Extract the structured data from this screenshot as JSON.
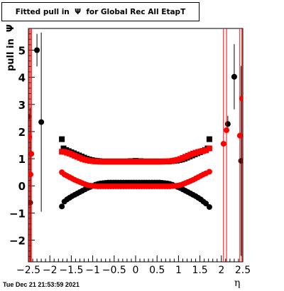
{
  "header": {
    "title": "Fitted pull in  Ψ  for Global Rec All EtapT",
    "footer_timestamp": "Tue Dec 21 21:53:59 2021"
  },
  "chart_data": {
    "type": "scatter",
    "title": "Fitted pull in  Ψ  for Global Rec All EtapT",
    "xlabel": "η",
    "ylabel": "pull in  Ψ",
    "xlim": [
      -2.5,
      2.5
    ],
    "ylim": [
      -2.8,
      5.8
    ],
    "x_ticks": [
      "−2.5",
      "−2",
      "−1.5",
      "−1",
      "−0.5",
      "0",
      "0.5",
      "1",
      "1.5",
      "2",
      "2.5"
    ],
    "x_tick_values": [
      -2.5,
      -2,
      -1.5,
      -1,
      -0.5,
      0,
      0.5,
      1,
      1.5,
      2,
      2.5
    ],
    "y_ticks": [
      "−2",
      "−1",
      "0",
      "1",
      "2",
      "3",
      "4",
      "5"
    ],
    "y_tick_values": [
      -2,
      -1,
      0,
      1,
      2,
      3,
      4,
      5
    ],
    "grid": false,
    "colors": {
      "black": "#000000",
      "red": "#ff0000"
    },
    "series": [
      {
        "marker": "square",
        "color": "#000000",
        "x": [
          -1.72,
          -1.68,
          -1.62,
          -1.56,
          -1.5,
          -1.44,
          -1.38,
          -1.32,
          -1.26,
          -1.2,
          -1.14,
          -1.08,
          -1.02,
          -0.96,
          -0.9,
          -0.84,
          -0.78,
          -0.72,
          -0.66,
          -0.6,
          -0.54,
          -0.48,
          -0.42,
          -0.36,
          -0.3,
          -0.24,
          -0.18,
          -0.12,
          -0.06,
          0,
          0.06,
          0.12,
          0.18,
          0.24,
          0.3,
          0.36,
          0.42,
          0.48,
          0.54,
          0.6,
          0.66,
          0.72,
          0.78,
          0.84,
          0.9,
          0.96,
          1.02,
          1.08,
          1.14,
          1.2,
          1.26,
          1.32,
          1.38,
          1.44,
          1.5,
          1.56,
          1.62,
          1.68,
          1.72
        ],
        "values": [
          1.72,
          1.38,
          1.32,
          1.28,
          1.24,
          1.2,
          1.16,
          1.12,
          1.08,
          1.04,
          1.0,
          0.97,
          0.95,
          0.93,
          0.92,
          0.91,
          0.9,
          0.9,
          0.9,
          0.9,
          0.9,
          0.9,
          0.9,
          0.9,
          0.9,
          0.9,
          0.9,
          0.91,
          0.91,
          0.92,
          0.91,
          0.91,
          0.9,
          0.9,
          0.9,
          0.9,
          0.9,
          0.9,
          0.9,
          0.9,
          0.9,
          0.9,
          0.9,
          0.91,
          0.92,
          0.93,
          0.95,
          0.97,
          1.0,
          1.04,
          1.08,
          1.12,
          1.16,
          1.2,
          1.24,
          1.28,
          1.32,
          1.38,
          1.72
        ]
      },
      {
        "marker": "square",
        "color": "#ff0000",
        "x": [
          -1.72,
          -1.66,
          -1.6,
          -1.54,
          -1.48,
          -1.42,
          -1.36,
          -1.3,
          -1.24,
          -1.18,
          -1.12,
          -1.06,
          -1.0,
          -0.94,
          -0.88,
          -0.82,
          -0.76,
          -0.7,
          -0.64,
          -0.58,
          -0.52,
          -0.46,
          -0.4,
          -0.34,
          -0.28,
          -0.22,
          -0.16,
          -0.1,
          -0.04,
          0.02,
          0.08,
          0.14,
          0.2,
          0.26,
          0.32,
          0.38,
          0.44,
          0.5,
          0.56,
          0.62,
          0.68,
          0.74,
          0.8,
          0.86,
          0.92,
          0.98,
          1.04,
          1.1,
          1.16,
          1.22,
          1.28,
          1.34,
          1.4,
          1.46,
          1.52,
          1.58,
          1.64,
          1.72
        ],
        "values": [
          1.26,
          1.25,
          1.22,
          1.19,
          1.15,
          1.11,
          1.07,
          1.03,
          0.99,
          0.96,
          0.94,
          0.92,
          0.91,
          0.9,
          0.9,
          0.89,
          0.89,
          0.89,
          0.89,
          0.89,
          0.89,
          0.89,
          0.89,
          0.89,
          0.89,
          0.89,
          0.89,
          0.89,
          0.89,
          0.89,
          0.89,
          0.89,
          0.89,
          0.89,
          0.89,
          0.89,
          0.89,
          0.89,
          0.89,
          0.89,
          0.9,
          0.9,
          0.91,
          0.92,
          0.94,
          0.96,
          0.99,
          1.03,
          1.07,
          1.11,
          1.15,
          1.19,
          1.22,
          1.25,
          1.27,
          1.29,
          1.31,
          1.38
        ]
      },
      {
        "marker": "circle",
        "color": "#000000",
        "x": [
          -1.72,
          -1.66,
          -1.6,
          -1.54,
          -1.48,
          -1.42,
          -1.36,
          -1.3,
          -1.24,
          -1.18,
          -1.12,
          -1.06,
          -1.0,
          -0.94,
          -0.88,
          -0.82,
          -0.76,
          -0.7,
          -0.64,
          -0.58,
          -0.52,
          -0.46,
          -0.4,
          -0.34,
          -0.28,
          -0.22,
          -0.16,
          -0.1,
          -0.04,
          0.02,
          0.08,
          0.14,
          0.2,
          0.26,
          0.32,
          0.38,
          0.44,
          0.5,
          0.56,
          0.62,
          0.68,
          0.74,
          0.8,
          0.86,
          0.92,
          0.98,
          1.04,
          1.1,
          1.16,
          1.22,
          1.28,
          1.34,
          1.4,
          1.46,
          1.52,
          1.58,
          1.64,
          1.72,
          -2.5,
          -2.46,
          -2.3,
          -2.2,
          2.3,
          2.46,
          2.15
        ],
        "values": [
          -0.76,
          -0.58,
          -0.5,
          -0.44,
          -0.38,
          -0.33,
          -0.28,
          -0.23,
          -0.18,
          -0.13,
          -0.08,
          -0.04,
          0.0,
          0.04,
          0.07,
          0.09,
          0.1,
          0.11,
          0.12,
          0.12,
          0.12,
          0.12,
          0.12,
          0.12,
          0.12,
          0.12,
          0.12,
          0.12,
          0.12,
          0.12,
          0.12,
          0.12,
          0.12,
          0.12,
          0.12,
          0.12,
          0.12,
          0.12,
          0.12,
          0.11,
          0.1,
          0.09,
          0.07,
          0.04,
          0.0,
          -0.04,
          -0.08,
          -0.13,
          -0.18,
          -0.23,
          -0.28,
          -0.33,
          -0.38,
          -0.44,
          -0.5,
          -0.58,
          -0.65,
          -0.78,
          2.55,
          -0.62,
          5.0,
          2.35,
          4.02,
          0.92,
          2.28
        ],
        "yerr": [
          0.05,
          0.05,
          0.05,
          0.05,
          0.05,
          0.05,
          0.05,
          0.05,
          0.05,
          0.05,
          0.05,
          0.05,
          0.05,
          0.05,
          0.05,
          0.05,
          0.05,
          0.05,
          0.05,
          0.05,
          0.05,
          0.05,
          0.05,
          0.05,
          0.05,
          0.05,
          0.05,
          0.05,
          0.05,
          0.05,
          0.05,
          0.05,
          0.05,
          0.05,
          0.05,
          0.05,
          0.05,
          0.05,
          0.05,
          0.05,
          0.05,
          0.05,
          0.05,
          0.05,
          0.05,
          0.05,
          0.05,
          0.05,
          0.05,
          0.05,
          0.05,
          0.05,
          0.05,
          0.05,
          0.05,
          0.05,
          0.05,
          0.05,
          3.5,
          3.5,
          0.6,
          3.3,
          1.2,
          3.5,
          0.3
        ]
      },
      {
        "marker": "circle",
        "color": "#ff0000",
        "x": [
          -1.72,
          -1.66,
          -1.6,
          -1.54,
          -1.48,
          -1.42,
          -1.36,
          -1.3,
          -1.24,
          -1.18,
          -1.12,
          -1.06,
          -1.0,
          -0.94,
          -0.88,
          -0.82,
          -0.76,
          -0.7,
          -0.64,
          -0.58,
          -0.52,
          -0.46,
          -0.4,
          -0.34,
          -0.28,
          -0.22,
          -0.16,
          -0.1,
          -0.04,
          0.02,
          0.08,
          0.14,
          0.2,
          0.26,
          0.32,
          0.38,
          0.44,
          0.5,
          0.56,
          0.62,
          0.68,
          0.74,
          0.8,
          0.86,
          0.92,
          0.98,
          1.04,
          1.1,
          1.16,
          1.22,
          1.28,
          1.34,
          1.4,
          1.46,
          1.52,
          1.58,
          1.64,
          1.72,
          -2.48,
          -2.45,
          -2.43,
          2.05,
          2.12,
          2.43,
          2.48
        ],
        "values": [
          0.5,
          0.42,
          0.37,
          0.32,
          0.27,
          0.22,
          0.18,
          0.14,
          0.1,
          0.06,
          0.03,
          0.01,
          0.0,
          -0.01,
          -0.02,
          -0.02,
          -0.02,
          -0.02,
          -0.02,
          -0.02,
          -0.02,
          -0.02,
          -0.02,
          -0.02,
          -0.02,
          -0.02,
          -0.02,
          -0.02,
          -0.02,
          -0.02,
          -0.02,
          -0.02,
          -0.02,
          -0.02,
          -0.02,
          -0.02,
          -0.02,
          -0.02,
          -0.02,
          -0.02,
          -0.02,
          -0.02,
          -0.02,
          -0.01,
          0.0,
          0.01,
          0.03,
          0.06,
          0.1,
          0.14,
          0.18,
          0.22,
          0.27,
          0.32,
          0.37,
          0.42,
          0.46,
          0.52,
          1.8,
          0.42,
          1.18,
          1.55,
          2.05,
          1.85,
          3.22
        ],
        "yerr": [
          0.05,
          0.05,
          0.05,
          0.05,
          0.05,
          0.05,
          0.05,
          0.05,
          0.05,
          0.05,
          0.05,
          0.05,
          0.05,
          0.05,
          0.05,
          0.05,
          0.05,
          0.05,
          0.05,
          0.05,
          0.05,
          0.05,
          0.05,
          0.05,
          0.05,
          0.05,
          0.05,
          0.05,
          0.05,
          0.05,
          0.05,
          0.05,
          0.05,
          0.05,
          0.05,
          0.05,
          0.05,
          0.05,
          0.05,
          0.05,
          0.05,
          0.05,
          0.05,
          0.05,
          0.05,
          0.05,
          0.05,
          0.05,
          0.05,
          0.05,
          0.05,
          0.05,
          0.05,
          0.05,
          0.05,
          0.05,
          0.05,
          0.05,
          6.0,
          6.0,
          6.0,
          6.0,
          6.0,
          6.0,
          6.0
        ]
      }
    ]
  }
}
